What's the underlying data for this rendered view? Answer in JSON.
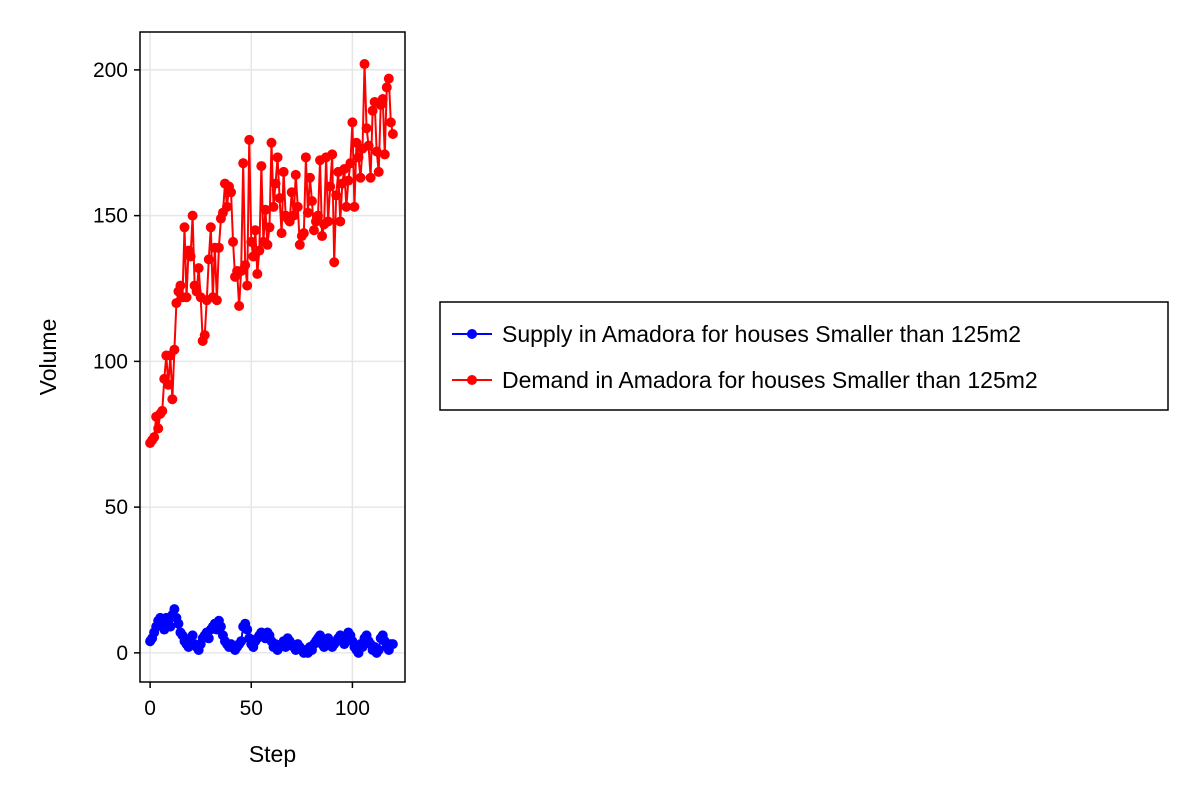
{
  "chart_data": {
    "type": "line",
    "title": "",
    "xlabel": "Step",
    "ylabel": "Volume",
    "xlim": [
      -5,
      126
    ],
    "ylim": [
      -10,
      213
    ],
    "xticks": [
      0,
      50,
      100
    ],
    "yticks": [
      0,
      50,
      100,
      150,
      200
    ],
    "grid": true,
    "legend_position": "right",
    "series": [
      {
        "name": "Supply in Amadora for houses Smaller than 125m2",
        "color": "#0000ff",
        "x": [
          0,
          1,
          2,
          3,
          4,
          5,
          6,
          7,
          8,
          9,
          10,
          11,
          12,
          13,
          14,
          15,
          16,
          17,
          18,
          19,
          20,
          21,
          22,
          23,
          24,
          25,
          26,
          27,
          28,
          29,
          30,
          31,
          32,
          33,
          34,
          35,
          36,
          37,
          38,
          39,
          40,
          41,
          42,
          43,
          44,
          45,
          46,
          47,
          48,
          49,
          50,
          51,
          52,
          53,
          54,
          55,
          56,
          57,
          58,
          59,
          60,
          61,
          62,
          63,
          64,
          65,
          66,
          67,
          68,
          69,
          70,
          71,
          72,
          73,
          74,
          75,
          76,
          77,
          78,
          79,
          80,
          81,
          82,
          83,
          84,
          85,
          86,
          87,
          88,
          89,
          90,
          91,
          92,
          93,
          94,
          95,
          96,
          97,
          98,
          99,
          100,
          101,
          102,
          103,
          104,
          105,
          106,
          107,
          108,
          109,
          110,
          111,
          112,
          113,
          114,
          115,
          116,
          117,
          118,
          119,
          120
        ],
        "y": [
          4,
          5,
          7,
          9,
          11,
          12,
          10,
          8,
          12,
          11,
          9,
          13,
          15,
          12,
          10,
          7,
          6,
          4,
          3,
          2,
          5,
          6,
          3,
          2,
          1,
          3,
          5,
          6,
          7,
          5,
          8,
          9,
          10,
          8,
          11,
          9,
          6,
          4,
          3,
          2,
          3,
          2,
          1,
          2,
          3,
          4,
          9,
          10,
          8,
          5,
          3,
          2,
          4,
          5,
          6,
          7,
          6,
          5,
          7,
          6,
          4,
          2,
          3,
          1,
          2,
          3,
          4,
          2,
          5,
          4,
          3,
          2,
          1,
          3,
          2,
          1,
          0,
          1,
          0,
          2,
          1,
          3,
          4,
          5,
          6,
          3,
          2,
          4,
          5,
          3,
          2,
          3,
          4,
          5,
          6,
          4,
          3,
          5,
          7,
          6,
          4,
          2,
          1,
          0,
          3,
          2,
          5,
          6,
          4,
          3,
          1,
          2,
          0,
          1,
          5,
          6,
          4,
          2,
          1,
          3,
          3
        ]
      },
      {
        "name": "Demand in Amadora for houses Smaller than 125m2",
        "color": "#ff0000",
        "x": [
          0,
          1,
          2,
          3,
          4,
          5,
          6,
          7,
          8,
          9,
          10,
          11,
          12,
          13,
          14,
          15,
          16,
          17,
          18,
          19,
          20,
          21,
          22,
          23,
          24,
          25,
          26,
          27,
          28,
          29,
          30,
          31,
          32,
          33,
          34,
          35,
          36,
          37,
          38,
          39,
          40,
          41,
          42,
          43,
          44,
          45,
          46,
          47,
          48,
          49,
          50,
          51,
          52,
          53,
          54,
          55,
          56,
          57,
          58,
          59,
          60,
          61,
          62,
          63,
          64,
          65,
          66,
          67,
          68,
          69,
          70,
          71,
          72,
          73,
          74,
          75,
          76,
          77,
          78,
          79,
          80,
          81,
          82,
          83,
          84,
          85,
          86,
          87,
          88,
          89,
          90,
          91,
          92,
          93,
          94,
          95,
          96,
          97,
          98,
          99,
          100,
          101,
          102,
          103,
          104,
          105,
          106,
          107,
          108,
          109,
          110,
          111,
          112,
          113,
          114,
          115,
          116,
          117,
          118,
          119,
          120
        ],
        "y": [
          72,
          73,
          74,
          81,
          77,
          82,
          83,
          94,
          102,
          92,
          102,
          87,
          104,
          120,
          124,
          126,
          122,
          146,
          122,
          138,
          136,
          150,
          126,
          124,
          132,
          122,
          107,
          109,
          121,
          135,
          146,
          122,
          139,
          121,
          139,
          149,
          151,
          161,
          153,
          160,
          158,
          141,
          129,
          131,
          119,
          131,
          168,
          133,
          126,
          176,
          141,
          136,
          145,
          130,
          138,
          167,
          141,
          152,
          140,
          146,
          175,
          153,
          161,
          170,
          156,
          144,
          165,
          150,
          149,
          148,
          158,
          150,
          164,
          153,
          140,
          143,
          144,
          170,
          151,
          163,
          155,
          145,
          148,
          150,
          169,
          143,
          147,
          170,
          148,
          160,
          171,
          134,
          157,
          165,
          148,
          161,
          166,
          153,
          162,
          168,
          182,
          153,
          175,
          170,
          163,
          173,
          202,
          180,
          174,
          163,
          186,
          189,
          172,
          165,
          188,
          190,
          171,
          194,
          197,
          182,
          178
        ]
      }
    ]
  }
}
